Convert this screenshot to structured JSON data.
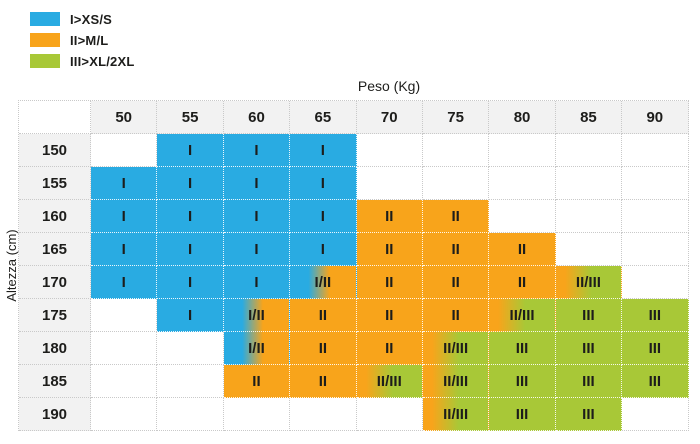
{
  "chart_data": {
    "type": "heatmap",
    "x_title": "Peso (Kg)",
    "y_title": "Altezza (cm)",
    "legend": [
      {
        "label": "I>XS/S",
        "color": "#29abe2",
        "size_code": "I"
      },
      {
        "label": "II>M/L",
        "color": "#f8a41b",
        "size_code": "II"
      },
      {
        "label": "III>XL/2XL",
        "color": "#a8c837",
        "size_code": "III"
      }
    ],
    "columns": [
      "50",
      "55",
      "60",
      "65",
      "70",
      "75",
      "80",
      "85",
      "90"
    ],
    "rows": [
      {
        "label": "150",
        "cells": [
          "",
          "I",
          "I",
          "I",
          "",
          "",
          "",
          "",
          ""
        ]
      },
      {
        "label": "155",
        "cells": [
          "I",
          "I",
          "I",
          "I",
          "",
          "",
          "",
          "",
          ""
        ]
      },
      {
        "label": "160",
        "cells": [
          "I",
          "I",
          "I",
          "I",
          "II",
          "II",
          "",
          "",
          ""
        ]
      },
      {
        "label": "165",
        "cells": [
          "I",
          "I",
          "I",
          "I",
          "II",
          "II",
          "II",
          "",
          ""
        ]
      },
      {
        "label": "170",
        "cells": [
          "I",
          "I",
          "I",
          "I/II",
          "II",
          "II",
          "II",
          "II/III",
          ""
        ]
      },
      {
        "label": "175",
        "cells": [
          "",
          "I",
          "I/II",
          "II",
          "II",
          "II",
          "II/III",
          "III",
          "III"
        ]
      },
      {
        "label": "180",
        "cells": [
          "",
          "",
          "I/II",
          "II",
          "II",
          "II/III",
          "III",
          "III",
          "III"
        ]
      },
      {
        "label": "185",
        "cells": [
          "",
          "",
          "II",
          "II",
          "II/III",
          "II/III",
          "III",
          "III",
          "III"
        ]
      },
      {
        "label": "190",
        "cells": [
          "",
          "",
          "",
          "",
          "",
          "II/III",
          "III",
          "III",
          ""
        ]
      }
    ]
  },
  "colors": {
    "cyan": "#29abe2",
    "orange": "#f8a41b",
    "green": "#a8c837",
    "header_bg": "#f2f2f2",
    "text": "#1d1d1b",
    "grid_dotted": "#c9c9c9"
  }
}
